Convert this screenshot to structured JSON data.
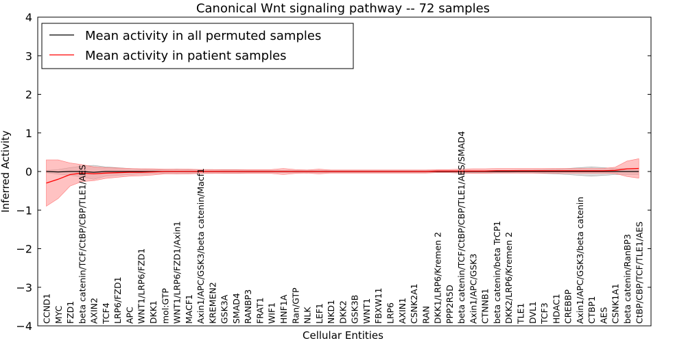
{
  "chart_data": {
    "type": "line",
    "title": "Canonical Wnt signaling pathway -- 72 samples",
    "xlabel": "Cellular Entities",
    "ylabel": "Inferred Activity",
    "ylim": [
      -4,
      4
    ],
    "yticks": [
      -4,
      -3,
      -2,
      -1,
      0,
      1,
      2,
      3,
      4
    ],
    "ytick_labels": [
      "−4",
      "−3",
      "−2",
      "−1",
      "0",
      "1",
      "2",
      "3",
      "4"
    ],
    "grid": false,
    "legend_position": "top-left",
    "categories": [
      "CCND1",
      "MYC",
      "FZD1",
      "beta catenin/TCF/CtBP/CBP/TLE1/AES",
      "AXIN2",
      "TCF4",
      "LRP6/FZD1",
      "APC",
      "WNT1/LRP6/FZD1",
      "DKK1",
      "mol:GTP",
      "WNT1/LRP6/FZD1/Axin1",
      "MACF1",
      "Axin1/APC/GSK3/beta catenin/Macf1",
      "KREMEN2",
      "GSK3A",
      "SMAD4",
      "RANBP3",
      "FRAT1",
      "WIF1",
      "HNF1A",
      "Ran/GTP",
      "NLK",
      "LEF1",
      "NKD1",
      "DKK2",
      "GSK3B",
      "WNT1",
      "FBXW11",
      "LRP6",
      "AXIN1",
      "CSNK2A1",
      "RAN",
      "DKK1/LRP6/Kremen 2",
      "PPP2R5D",
      "beta catenin/TCF/CtBP/CBP/TLE1/AES/SMAD4",
      "Axin1/APC/GSK3",
      "CTNNB1",
      "beta catenin/beta TrCP1",
      "DKK2/LRP6/Kremen 2",
      "TLE1",
      "DVL1",
      "TCF3",
      "HDAC1",
      "CREBBP",
      "Axin1/APC/GSK3/beta catenin",
      "CTBP1",
      "AES",
      "CSNK1A1",
      "beta catenin/RanBP3",
      "CtBP/CBP/TCF/TLE1/AES"
    ],
    "series": [
      {
        "name": "Mean activity in all permuted samples",
        "color": "#000000",
        "band_color": "#bfbfbf",
        "values": [
          0,
          -0.01,
          0,
          0,
          -0.02,
          0,
          0,
          0,
          0,
          0,
          0,
          0,
          0,
          0,
          0,
          0,
          0,
          0,
          0,
          0,
          0,
          0,
          0,
          0,
          0,
          0,
          0,
          0,
          0,
          0,
          0,
          0,
          0,
          0,
          0,
          0,
          0,
          0,
          0,
          0,
          0,
          0,
          0,
          0,
          0,
          0,
          0,
          0,
          0,
          0,
          0
        ],
        "band_halfwidth": [
          0.03,
          0.06,
          0.1,
          0.14,
          0.18,
          0.12,
          0.1,
          0.08,
          0.06,
          0.05,
          0.05,
          0.06,
          0.05,
          0.05,
          0.05,
          0.04,
          0.04,
          0.03,
          0.03,
          0.03,
          0.03,
          0.03,
          0.03,
          0.03,
          0.03,
          0.03,
          0.03,
          0.03,
          0.03,
          0.03,
          0.03,
          0.03,
          0.03,
          0.03,
          0.03,
          0.03,
          0.03,
          0.03,
          0.03,
          0.03,
          0.04,
          0.04,
          0.05,
          0.06,
          0.08,
          0.1,
          0.12,
          0.1,
          0.08,
          0.08,
          0.08
        ]
      },
      {
        "name": "Mean activity in patient samples",
        "color": "#ff0000",
        "band_color": "#ff9999",
        "values": [
          -0.3,
          -0.2,
          -0.08,
          -0.04,
          -0.06,
          -0.04,
          -0.03,
          -0.02,
          -0.02,
          -0.01,
          0,
          0,
          0,
          0,
          0,
          0,
          0,
          0,
          0,
          0,
          0,
          0,
          0,
          0,
          0,
          0,
          0,
          0,
          0,
          0,
          0,
          0,
          0,
          0.01,
          0.01,
          0.01,
          0.01,
          0.01,
          0.02,
          0.02,
          0.02,
          0.02,
          0.02,
          0.02,
          0.02,
          0.02,
          0.02,
          0.02,
          0.03,
          0.07,
          0.08
        ],
        "band_halfwidth": [
          0.6,
          0.5,
          0.3,
          0.22,
          0.18,
          0.14,
          0.12,
          0.1,
          0.09,
          0.08,
          0.06,
          0.06,
          0.06,
          0.05,
          0.05,
          0.05,
          0.05,
          0.05,
          0.05,
          0.05,
          0.08,
          0.05,
          0.04,
          0.06,
          0.04,
          0.04,
          0.04,
          0.04,
          0.04,
          0.04,
          0.04,
          0.04,
          0.04,
          0.04,
          0.04,
          0.05,
          0.06,
          0.06,
          0.06,
          0.06,
          0.06,
          0.06,
          0.06,
          0.06,
          0.06,
          0.06,
          0.06,
          0.06,
          0.08,
          0.2,
          0.25
        ]
      }
    ]
  }
}
